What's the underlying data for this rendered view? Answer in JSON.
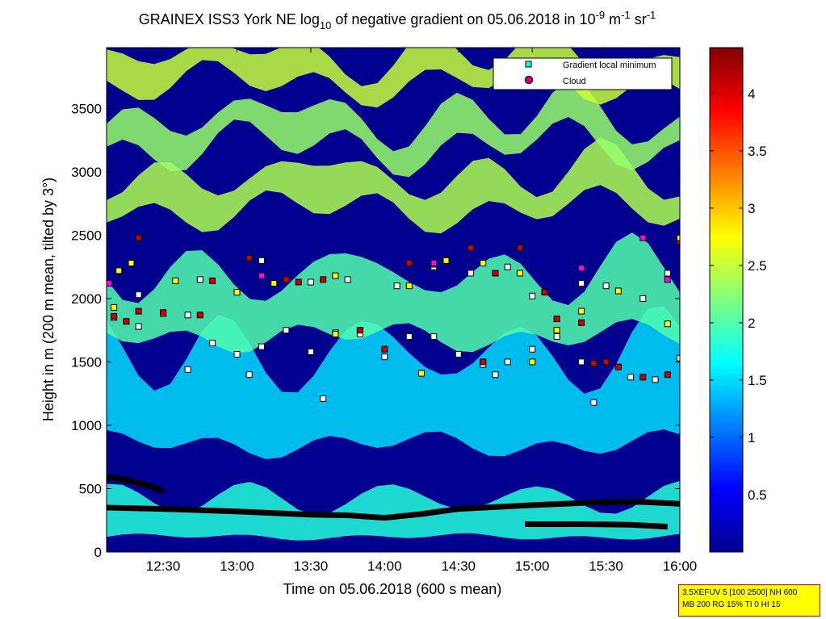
{
  "chart_data": {
    "type": "heatmap",
    "title": {
      "prefix": "GRAINEX ISS3 York NE log",
      "sub": "10",
      "middle": " of negative gradient on 05.06.2018 in 10",
      "exp1": "-9",
      "unit_m": " m",
      "exp2": "-1",
      "unit_sr": " sr",
      "exp3": "-1"
    },
    "xlabel": "Time on 05.06.2018 (600 s mean)",
    "ylabel": "Height in m (200 m mean, tilted by 3°)",
    "x_ticks": [
      "12:30",
      "13:00",
      "13:30",
      "14:00",
      "14:30",
      "15:00",
      "15:30",
      "16:00"
    ],
    "x_range": [
      "12:07",
      "16:00"
    ],
    "y_ticks": [
      "0",
      "500",
      "1000",
      "1500",
      "2000",
      "2500",
      "3000",
      "3500"
    ],
    "y_range": [
      0,
      3980
    ],
    "colorbar": {
      "ticks": [
        "0.5",
        "1",
        "1.5",
        "2",
        "2.5",
        "3",
        "3.5",
        "4"
      ],
      "range": [
        0,
        4.4
      ],
      "colormap": "jet"
    },
    "legend": {
      "placement": "top-right",
      "entries": [
        {
          "label": "Gradient local minimum",
          "marker": "square",
          "color": "#00ffff"
        },
        {
          "label": "Cloud",
          "marker": "circle",
          "color": "#ff0000",
          "edge": "#0000ff"
        }
      ]
    },
    "layers": [
      {
        "from": "12:07",
        "to": "16:00",
        "base": 120,
        "amp": 30,
        "top_offset": 380,
        "value": 1.8
      },
      {
        "from": "12:07",
        "to": "16:00",
        "base": 850,
        "amp": 120,
        "top_offset": 900,
        "value": 1.5
      },
      {
        "from": "12:07",
        "to": "16:00",
        "base": 1700,
        "amp": 140,
        "top_offset": 620,
        "value": 2.0
      },
      {
        "from": "12:07",
        "to": "16:00",
        "base": 2700,
        "amp": 200,
        "top_offset": 350,
        "value": 2.4
      },
      {
        "from": "12:07",
        "to": "16:00",
        "base": 3200,
        "amp": 250,
        "top_offset": 300,
        "value": 2.3
      },
      {
        "from": "12:07",
        "to": "16:00",
        "base": 3700,
        "amp": 200,
        "top_offset": 280,
        "value": 2.5
      }
    ],
    "series": [
      {
        "name": "Gradient local minimum",
        "style": "dense-line",
        "color": "#000000",
        "points": [
          [
            "12:07",
            350
          ],
          [
            "12:30",
            340
          ],
          [
            "13:00",
            320
          ],
          [
            "13:30",
            295
          ],
          [
            "13:45",
            290
          ],
          [
            "14:00",
            270
          ],
          [
            "14:15",
            300
          ],
          [
            "14:30",
            340
          ],
          [
            "15:00",
            370
          ],
          [
            "15:30",
            395
          ],
          [
            "15:45",
            395
          ],
          [
            "16:00",
            380
          ]
        ]
      },
      {
        "name": "Gradient local minimum",
        "style": "dense-line",
        "color": "#000000",
        "points": [
          [
            "12:07",
            590
          ],
          [
            "12:15",
            570
          ],
          [
            "12:25",
            520
          ],
          [
            "12:30",
            480
          ]
        ]
      },
      {
        "name": "Gradient local minimum",
        "style": "dense-line",
        "color": "#000000",
        "points": [
          [
            "14:57",
            220
          ],
          [
            "15:10",
            220
          ],
          [
            "15:20",
            220
          ],
          [
            "15:40",
            215
          ],
          [
            "15:55",
            200
          ]
        ]
      },
      {
        "name": "Gradient local minimum",
        "style": "markers",
        "color": "#ffffff",
        "points": [
          [
            "12:10",
            1850
          ],
          [
            "12:20",
            1780
          ],
          [
            "12:30",
            1880
          ],
          [
            "12:40",
            1870
          ],
          [
            "12:50",
            1650
          ],
          [
            "13:00",
            1560
          ],
          [
            "13:10",
            1620
          ],
          [
            "13:20",
            1750
          ],
          [
            "13:30",
            1580
          ],
          [
            "13:40",
            1730
          ],
          [
            "13:50",
            1720
          ],
          [
            "14:00",
            1540
          ],
          [
            "14:10",
            1700
          ],
          [
            "14:20",
            1700
          ],
          [
            "14:30",
            1560
          ],
          [
            "14:40",
            1480
          ],
          [
            "14:50",
            1500
          ],
          [
            "15:00",
            1600
          ],
          [
            "15:10",
            1700
          ],
          [
            "15:20",
            1500
          ],
          [
            "15:30",
            1500
          ],
          [
            "15:40",
            1380
          ],
          [
            "15:50",
            1360
          ],
          [
            "16:00",
            1530
          ],
          [
            "12:40",
            1440
          ],
          [
            "13:05",
            1400
          ],
          [
            "13:35",
            1210
          ],
          [
            "14:45",
            1400
          ],
          [
            "15:25",
            1180
          ],
          [
            "12:20",
            2030
          ],
          [
            "12:45",
            2150
          ],
          [
            "13:10",
            2300
          ],
          [
            "13:30",
            2130
          ],
          [
            "13:45",
            2150
          ],
          [
            "14:05",
            2100
          ],
          [
            "14:20",
            2250
          ],
          [
            "14:35",
            2200
          ],
          [
            "14:50",
            2250
          ],
          [
            "15:00",
            2020
          ],
          [
            "15:20",
            2120
          ],
          [
            "15:30",
            2100
          ],
          [
            "15:45",
            2000
          ],
          [
            "15:55",
            2200
          ]
        ]
      },
      {
        "name": "Cloud",
        "style": "markers",
        "color": "#cc0000",
        "points": [
          [
            "12:10",
            1860
          ],
          [
            "12:15",
            1820
          ],
          [
            "12:20",
            1900
          ],
          [
            "12:30",
            1890
          ],
          [
            "12:45",
            1870
          ],
          [
            "12:50",
            2140
          ],
          [
            "13:05",
            2320
          ],
          [
            "13:20",
            2150
          ],
          [
            "13:35",
            2150
          ],
          [
            "13:50",
            1750
          ],
          [
            "14:00",
            1600
          ],
          [
            "14:10",
            2280
          ],
          [
            "14:20",
            2270
          ],
          [
            "14:35",
            2400
          ],
          [
            "14:40",
            1500
          ],
          [
            "14:45",
            2200
          ],
          [
            "15:05",
            2050
          ],
          [
            "15:10",
            1840
          ],
          [
            "15:20",
            1810
          ],
          [
            "15:25",
            1490
          ],
          [
            "15:30",
            1500
          ],
          [
            "15:35",
            1460
          ],
          [
            "15:45",
            1380
          ],
          [
            "15:55",
            1400
          ],
          [
            "16:00",
            2450
          ],
          [
            "12:20",
            2480
          ],
          [
            "13:25",
            2130
          ],
          [
            "14:55",
            2400
          ]
        ]
      },
      {
        "name": "Cloud",
        "style": "markers",
        "color": "#ffff00",
        "points": [
          [
            "12:12",
            2220
          ],
          [
            "12:17",
            2280
          ],
          [
            "12:35",
            2140
          ],
          [
            "13:00",
            2050
          ],
          [
            "13:15",
            2120
          ],
          [
            "13:40",
            2180
          ],
          [
            "14:10",
            2100
          ],
          [
            "14:25",
            2300
          ],
          [
            "14:40",
            2280
          ],
          [
            "14:55",
            2200
          ],
          [
            "15:10",
            1750
          ],
          [
            "15:20",
            1900
          ],
          [
            "15:35",
            2060
          ],
          [
            "15:55",
            1800
          ],
          [
            "16:00",
            2480
          ],
          [
            "12:10",
            1930
          ],
          [
            "13:40",
            1720
          ],
          [
            "14:15",
            1410
          ],
          [
            "15:00",
            1500
          ]
        ]
      },
      {
        "name": "Cloud",
        "style": "markers",
        "color": "#ff00ff",
        "points": [
          [
            "12:08",
            2120
          ],
          [
            "13:10",
            2180
          ],
          [
            "14:20",
            2280
          ],
          [
            "15:20",
            2240
          ],
          [
            "15:45",
            2480
          ],
          [
            "15:55",
            2150
          ]
        ]
      }
    ]
  },
  "info_box": {
    "line1": "3.5XEFUV 5 [100 2500] NH 600",
    "line2": "MB 200 RG 15% TI 0 HI 15"
  }
}
